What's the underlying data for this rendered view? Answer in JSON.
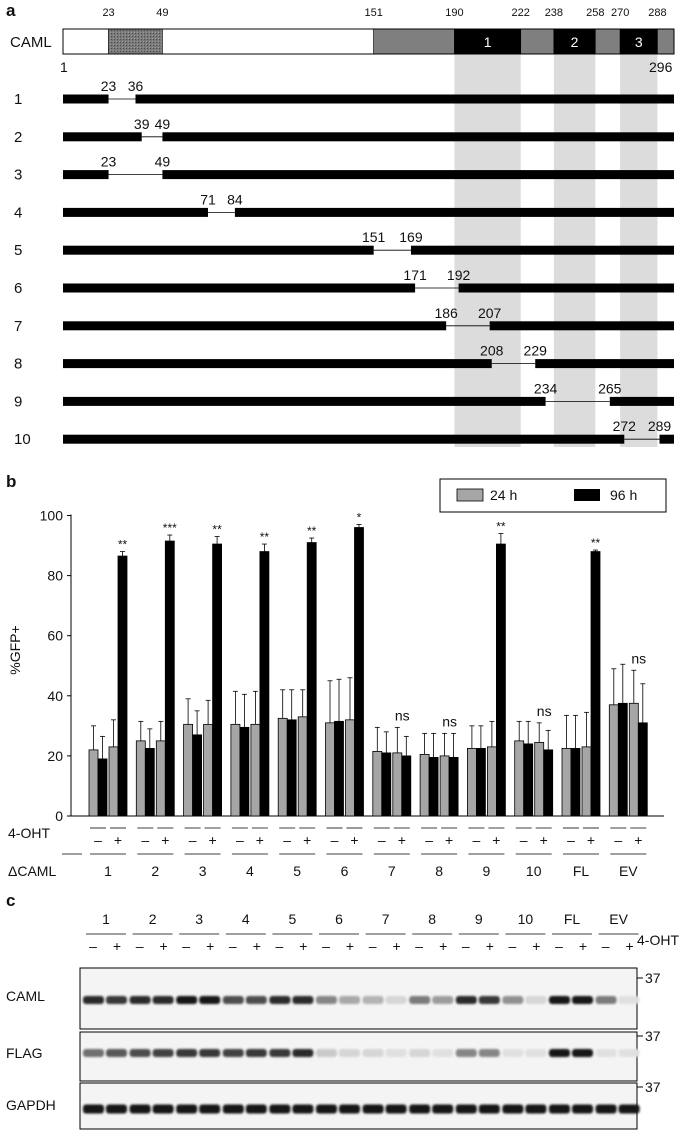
{
  "panel_a": {
    "label": "a",
    "protein_name": "CAML",
    "length": 296,
    "start_label": "1",
    "end_label": "296",
    "ticks": [
      23,
      49,
      151,
      190,
      222,
      238,
      258,
      270,
      288
    ],
    "domains": [
      {
        "start": 1,
        "end": 23,
        "kind": "plain"
      },
      {
        "start": 23,
        "end": 49,
        "kind": "hatched"
      },
      {
        "start": 49,
        "end": 151,
        "kind": "plain"
      },
      {
        "start": 151,
        "end": 190,
        "kind": "gray"
      },
      {
        "start": 190,
        "end": 222,
        "kind": "tm",
        "label": "1"
      },
      {
        "start": 222,
        "end": 238,
        "kind": "gray"
      },
      {
        "start": 238,
        "end": 258,
        "kind": "tm",
        "label": "2"
      },
      {
        "start": 258,
        "end": 270,
        "kind": "gray"
      },
      {
        "start": 270,
        "end": 288,
        "kind": "tm",
        "label": "3"
      },
      {
        "start": 288,
        "end": 296,
        "kind": "gray"
      }
    ],
    "deletions": [
      {
        "id": "1",
        "start": 23,
        "end": 36,
        "start_label": "23",
        "end_label": "36"
      },
      {
        "id": "2",
        "start": 39,
        "end": 49,
        "start_label": "39",
        "end_label": "49"
      },
      {
        "id": "3",
        "start": 23,
        "end": 49,
        "start_label": "23",
        "end_label": "49"
      },
      {
        "id": "4",
        "start": 71,
        "end": 84,
        "start_label": "71",
        "end_label": "84"
      },
      {
        "id": "5",
        "start": 151,
        "end": 169,
        "start_label": "151",
        "end_label": "169"
      },
      {
        "id": "6",
        "start": 171,
        "end": 192,
        "start_label": "171",
        "end_label": "192"
      },
      {
        "id": "7",
        "start": 186,
        "end": 207,
        "start_label": "186",
        "end_label": "207"
      },
      {
        "id": "8",
        "start": 208,
        "end": 229,
        "start_label": "208",
        "end_label": "229"
      },
      {
        "id": "9",
        "start": 234,
        "end": 265,
        "start_label": "234",
        "end_label": "265"
      },
      {
        "id": "10",
        "start": 272,
        "end": 289,
        "start_label": "272",
        "end_label": "289"
      }
    ]
  },
  "chart_data": {
    "label": "b",
    "type": "bar",
    "ylabel": "%GFP+",
    "ylim": [
      0,
      100
    ],
    "yticks": [
      0,
      20,
      40,
      60,
      80,
      100
    ],
    "legend": [
      "24 h",
      "96 h"
    ],
    "legend_position": "top-right",
    "colors": {
      "24 h": "#a6a6a6",
      "96 h": "#000000"
    },
    "row_label_treatment": "4-OHT",
    "row_label_construct": "ΔCAML",
    "treatment_labels": [
      "–",
      "+"
    ],
    "categories": [
      "1",
      "2",
      "3",
      "4",
      "5",
      "6",
      "7",
      "8",
      "9",
      "10",
      "FL",
      "EV"
    ],
    "series": [
      {
        "name": "24 h",
        "treatment": "–",
        "values": [
          22,
          25,
          30.5,
          30.5,
          32.5,
          31,
          21.5,
          20.5,
          22.5,
          25,
          22.5,
          37
        ],
        "errors": [
          8,
          6.5,
          8.5,
          11,
          9.5,
          14,
          8,
          7,
          7.5,
          6.5,
          11,
          12
        ]
      },
      {
        "name": "96 h",
        "treatment": "–",
        "values": [
          19,
          22.5,
          27,
          29.5,
          32,
          31.5,
          21,
          19.5,
          22.5,
          24,
          22.5,
          37.5
        ],
        "errors": [
          7.5,
          6.5,
          8,
          11,
          10,
          14,
          7,
          8,
          7.5,
          7.5,
          11,
          13
        ]
      },
      {
        "name": "24 h",
        "treatment": "+",
        "values": [
          23,
          25,
          30.5,
          30.5,
          33,
          32,
          21,
          20,
          23,
          24.5,
          23,
          37.5
        ],
        "errors": [
          9,
          6.5,
          8,
          11,
          9,
          14,
          8.5,
          7.5,
          8.5,
          6.5,
          11.5,
          11
        ]
      },
      {
        "name": "96 h",
        "treatment": "+",
        "values": [
          86.5,
          91.5,
          90.5,
          88,
          91,
          96,
          20,
          19.5,
          90.5,
          22,
          88,
          31
        ],
        "errors": [
          1.5,
          2,
          2.5,
          2.5,
          1.5,
          1,
          6.5,
          8,
          3.5,
          6.5,
          0.5,
          13
        ]
      }
    ],
    "significance": [
      "**",
      "***",
      "**",
      "**",
      "**",
      "*",
      "ns",
      "ns",
      "**",
      "ns",
      "**",
      "ns"
    ]
  },
  "panel_c": {
    "label": "c",
    "lanes": [
      "1",
      "2",
      "3",
      "4",
      "5",
      "6",
      "7",
      "8",
      "9",
      "10",
      "FL",
      "EV"
    ],
    "treatment_row_label": "4-OHT",
    "treatment_signs": [
      "–",
      "+"
    ],
    "blots": [
      {
        "name": "CAML",
        "marker": "37",
        "bands": [
          [
            0.85,
            0.8
          ],
          [
            0.85,
            0.85
          ],
          [
            0.95,
            0.95
          ],
          [
            0.7,
            0.7
          ],
          [
            0.85,
            0.85
          ],
          [
            0.45,
            0.3
          ],
          [
            0.25,
            0.1
          ],
          [
            0.5,
            0.35
          ],
          [
            0.85,
            0.8
          ],
          [
            0.4,
            0.1
          ],
          [
            0.95,
            0.95
          ],
          [
            0.5,
            0.05
          ]
        ]
      },
      {
        "name": "FLAG",
        "marker": "37",
        "bands": [
          [
            0.55,
            0.65
          ],
          [
            0.7,
            0.75
          ],
          [
            0.8,
            0.8
          ],
          [
            0.75,
            0.8
          ],
          [
            0.8,
            0.85
          ],
          [
            0.15,
            0.1
          ],
          [
            0.1,
            0.05
          ],
          [
            0.1,
            0.05
          ],
          [
            0.45,
            0.45
          ],
          [
            0.05,
            0.05
          ],
          [
            0.95,
            0.95
          ],
          [
            0.05,
            0.05
          ]
        ]
      },
      {
        "name": "GAPDH",
        "marker": "37",
        "bands": [
          [
            0.95,
            0.95
          ],
          [
            0.95,
            0.95
          ],
          [
            0.95,
            0.95
          ],
          [
            0.95,
            0.95
          ],
          [
            0.95,
            0.95
          ],
          [
            0.95,
            0.95
          ],
          [
            0.95,
            0.95
          ],
          [
            0.95,
            0.95
          ],
          [
            0.95,
            0.95
          ],
          [
            0.95,
            0.95
          ],
          [
            0.95,
            0.95
          ],
          [
            0.95,
            0.95
          ]
        ]
      }
    ]
  }
}
